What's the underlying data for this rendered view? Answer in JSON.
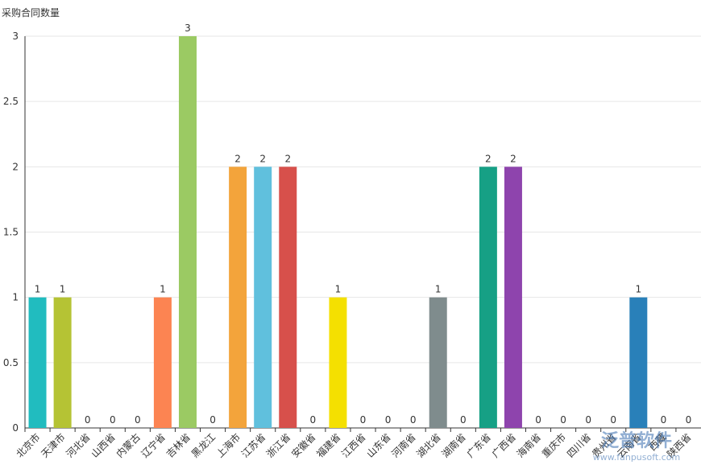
{
  "chart_data": {
    "type": "bar",
    "y_label": "采购合同数量",
    "categories": [
      "北京市",
      "天津市",
      "河北省",
      "山西省",
      "内蒙古",
      "辽宁省",
      "吉林省",
      "黑龙江",
      "上海市",
      "江苏省",
      "浙江省",
      "安徽省",
      "福建省",
      "江西省",
      "山东省",
      "河南省",
      "湖北省",
      "湖南省",
      "广东省",
      "广西省",
      "海南省",
      "重庆市",
      "四川省",
      "贵州省",
      "云南省",
      "西藏",
      "陕西省"
    ],
    "values": [
      1,
      1,
      0,
      0,
      0,
      1,
      3,
      0,
      2,
      2,
      2,
      0,
      1,
      0,
      0,
      0,
      1,
      0,
      2,
      2,
      0,
      0,
      0,
      0,
      1,
      0,
      0
    ],
    "colors": [
      "#21bcbf",
      "#b5c334",
      null,
      null,
      null,
      "#fc8452",
      "#9bca63",
      null,
      "#f3a43b",
      "#60c0dd",
      "#d7504b",
      null,
      "#f4e001",
      null,
      null,
      null,
      "#7f8c8d",
      null,
      "#16a085",
      "#8e44ad",
      null,
      null,
      null,
      null,
      "#2980b9",
      null,
      null
    ],
    "ylim": [
      0,
      3
    ],
    "yticks": [
      0,
      0.5,
      1,
      1.5,
      2,
      2.5,
      3
    ],
    "grid": true,
    "watermark": "泛普软件",
    "watermark_url": "www.fanpusoft.com"
  }
}
